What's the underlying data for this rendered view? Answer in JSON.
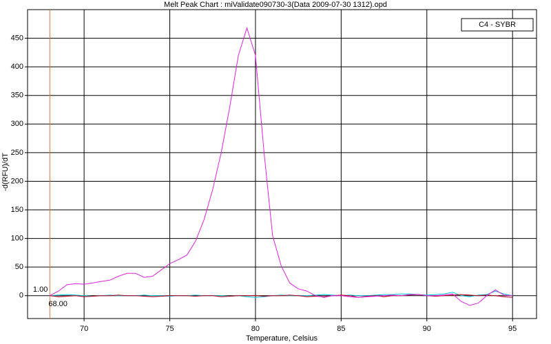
{
  "chart_data": {
    "type": "line",
    "title": "Melt Peak Chart : miValidate090730-3(Data 2009-07-30 1312).opd",
    "x_label": "Temperature, Celsius",
    "y_label": "-d(RFU)/dT",
    "legend": "C4 - SYBR",
    "grid": true,
    "xlim": [
      66.7,
      96.4
    ],
    "ylim": [
      -40,
      500
    ],
    "xticks": [
      70,
      75,
      80,
      85,
      90,
      95
    ],
    "yticks": [
      0,
      50,
      100,
      150,
      200,
      250,
      300,
      350,
      400,
      450
    ],
    "marker": {
      "x": {
        "value": 68,
        "label": "68.00"
      },
      "y": {
        "value": 1,
        "label": "1.00"
      },
      "color": "#e07830"
    },
    "x": [
      68,
      68.5,
      69,
      69.5,
      70,
      70.5,
      71,
      71.5,
      72,
      72.5,
      73,
      73.5,
      74,
      74.5,
      75,
      75.5,
      76,
      76.5,
      77,
      77.5,
      78,
      78.5,
      79,
      79.5,
      80,
      80.5,
      81,
      81.5,
      82,
      82.5,
      83,
      83.5,
      84,
      84.5,
      85,
      85.5,
      86,
      86.5,
      87,
      87.5,
      88,
      88.5,
      89,
      89.5,
      90,
      90.5,
      91,
      91.5,
      92,
      92.5,
      93,
      93.5,
      94,
      94.5,
      95
    ],
    "series": [
      {
        "color": "#00c8e0",
        "values": [
          0,
          1,
          2,
          1,
          0,
          -1,
          0,
          1,
          0,
          0,
          0,
          1,
          0,
          0,
          -1,
          0,
          0,
          1,
          0,
          0,
          0,
          -1,
          0,
          -2,
          -3,
          -2,
          0,
          1,
          0,
          0,
          0,
          1,
          2,
          1,
          0,
          1,
          0,
          0,
          1,
          2,
          2,
          3,
          3,
          2,
          1,
          2,
          3,
          6,
          0,
          -2,
          1,
          2,
          8,
          3,
          0
        ]
      },
      {
        "color": "#c00020",
        "values": [
          0,
          -2,
          -1,
          0,
          -2,
          -1,
          0,
          0,
          1,
          0,
          0,
          -1,
          -2,
          -1,
          0,
          0,
          0,
          -1,
          0,
          0,
          -2,
          -1,
          0,
          0,
          0,
          -1,
          0,
          0,
          1,
          0,
          -2,
          -1,
          -2,
          0,
          1,
          0,
          -3,
          -1,
          0,
          -2,
          0,
          0,
          1,
          2,
          0,
          -1,
          0,
          1,
          2,
          1,
          0,
          1,
          0,
          -2,
          -3
        ]
      },
      {
        "name": "C4 - SYBR",
        "color": "#e020e0",
        "values": [
          0,
          8,
          19,
          21,
          20,
          22,
          25,
          27,
          34,
          39,
          39,
          32,
          34,
          45,
          56,
          63,
          71,
          95,
          133,
          185,
          250,
          330,
          420,
          468,
          420,
          250,
          105,
          52,
          22,
          12,
          8,
          0,
          -3,
          0,
          0,
          -2,
          -3,
          -2,
          -1,
          0,
          1,
          0,
          2,
          2,
          0,
          0,
          1,
          3,
          -10,
          -17,
          -13,
          0,
          10,
          1,
          0
        ]
      }
    ]
  }
}
